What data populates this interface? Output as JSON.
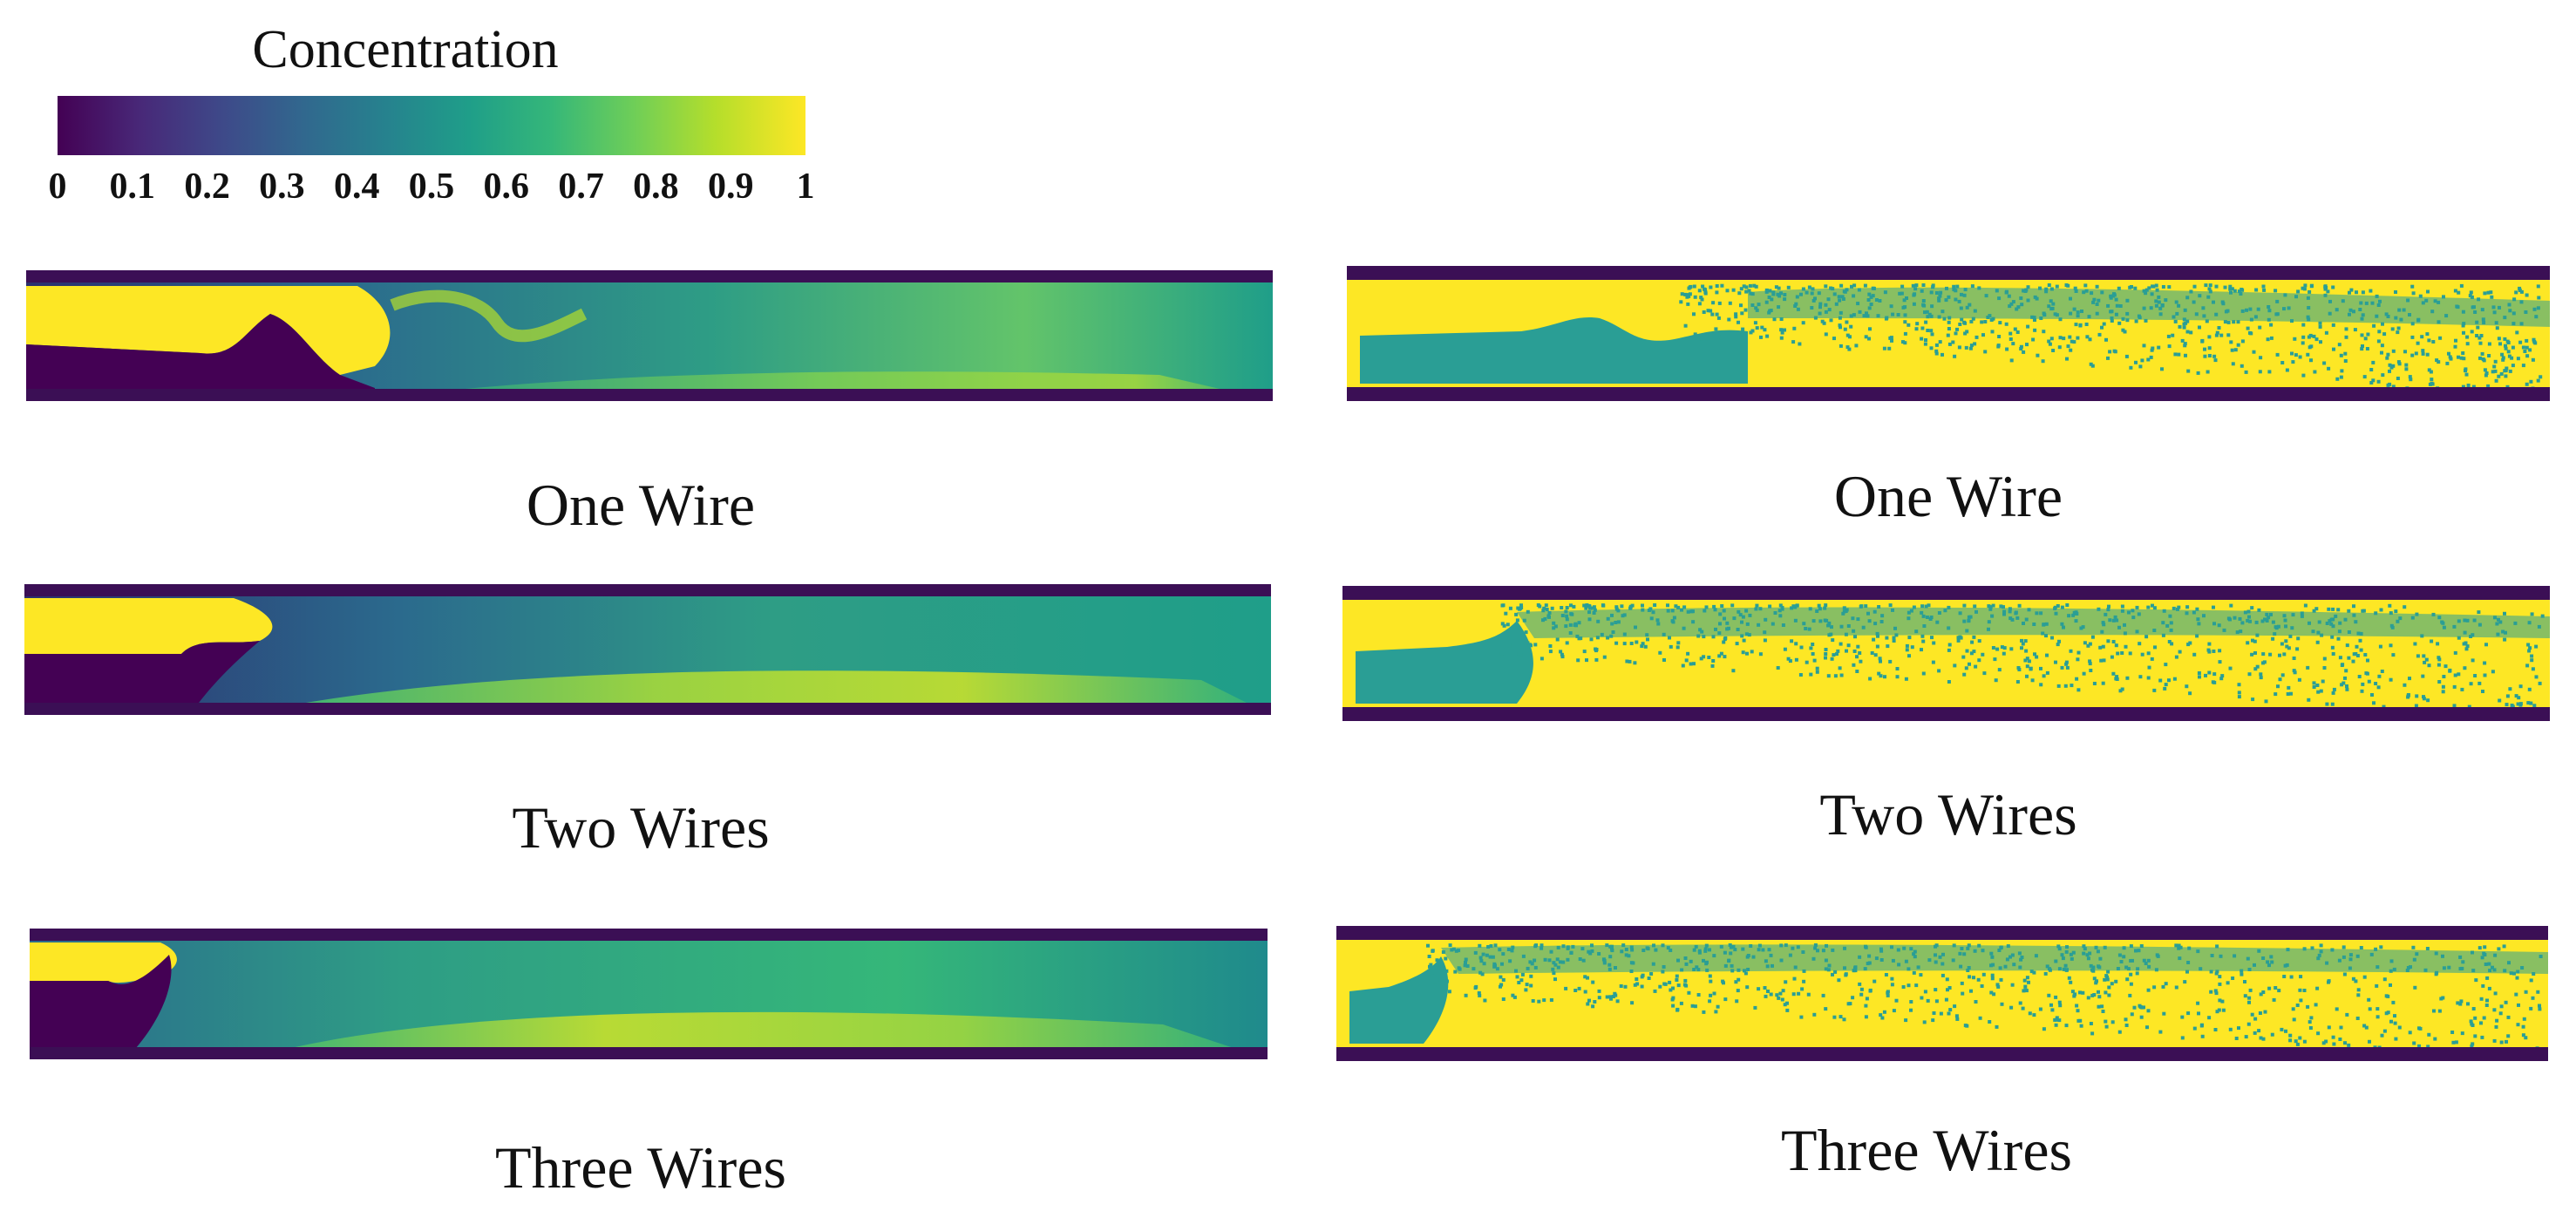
{
  "colorbar": {
    "title": "Concentration",
    "ticks": [
      "0",
      "0.1",
      "0.2",
      "0.3",
      "0.4",
      "0.5",
      "0.6",
      "0.7",
      "0.8",
      "0.9",
      "1"
    ],
    "stops": [
      "#440154",
      "#482878",
      "#3e4989",
      "#31688e",
      "#26828e",
      "#1f9e89",
      "#35b779",
      "#6ece58",
      "#b5de2b",
      "#fde725"
    ]
  },
  "left_column": [
    {
      "caption": "One Wire"
    },
    {
      "caption": "Two Wires"
    },
    {
      "caption": "Three Wires"
    }
  ],
  "right_column": [
    {
      "caption": "One Wire"
    },
    {
      "caption": "Two Wires"
    },
    {
      "caption": "Three Wires"
    }
  ],
  "colors": {
    "wall": "#3b0f55",
    "low": "#440154",
    "high": "#fde725",
    "teal": "#2a9e95"
  }
}
